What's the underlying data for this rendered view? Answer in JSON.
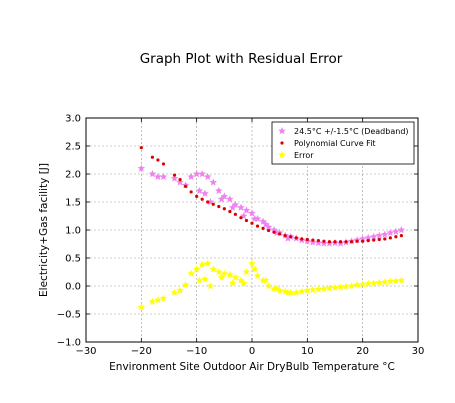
{
  "chart_data": {
    "type": "scatter",
    "title": "Graph Plot with Residual Error",
    "xlabel": "Environment Site Outdoor Air DryBulb Temperature °C",
    "ylabel": "Electricity+Gas facility [J]",
    "xlim": [
      -30,
      30
    ],
    "ylim": [
      -1.0,
      3.0
    ],
    "xticks": [
      -30,
      -20,
      -10,
      0,
      10,
      20,
      30
    ],
    "yticks": [
      -1.0,
      -0.5,
      0.0,
      0.5,
      1.0,
      1.5,
      2.0,
      2.5,
      3.0
    ],
    "grid": true,
    "legend_position": "top-right",
    "series": [
      {
        "name": "24.5°C +/-1.5°C (Deadband)",
        "marker": "star",
        "color": "#ee82ee",
        "x": [
          -20,
          -18,
          -17,
          -16,
          -14,
          -13,
          -12,
          -11,
          -10,
          -9,
          -8,
          -7,
          -6,
          -5,
          -4,
          -3,
          -2,
          -1,
          0,
          1,
          2,
          3,
          4,
          5,
          6,
          7,
          8,
          9,
          10,
          11,
          12,
          13,
          14,
          15,
          16,
          17,
          18,
          19,
          20,
          21,
          22,
          23,
          24,
          25,
          26,
          27,
          -9.5,
          -8.5,
          -7.5,
          -5.5,
          -3.5,
          -1.5,
          0.5,
          2.5,
          4.5,
          6.5
        ],
        "y": [
          2.1,
          2.0,
          1.95,
          1.95,
          1.92,
          1.85,
          1.8,
          1.95,
          2.0,
          2.0,
          1.95,
          1.85,
          1.7,
          1.6,
          1.55,
          1.45,
          1.4,
          1.35,
          1.3,
          1.2,
          1.15,
          1.05,
          1.0,
          0.95,
          0.9,
          0.88,
          0.85,
          0.82,
          0.8,
          0.78,
          0.77,
          0.76,
          0.76,
          0.77,
          0.76,
          0.78,
          0.8,
          0.82,
          0.84,
          0.86,
          0.88,
          0.9,
          0.92,
          0.95,
          0.97,
          1.0,
          1.7,
          1.65,
          1.5,
          1.55,
          1.4,
          1.25,
          1.2,
          1.1,
          0.95,
          0.85
        ]
      },
      {
        "name": "Polynomial Curve Fit",
        "marker": "circle",
        "color": "#dd0000",
        "x": [
          -20,
          -18,
          -17,
          -16,
          -14,
          -13,
          -12,
          -11,
          -10,
          -9,
          -8,
          -7,
          -6,
          -5,
          -4,
          -3,
          -2,
          -1,
          0,
          1,
          2,
          3,
          4,
          5,
          6,
          7,
          8,
          9,
          10,
          11,
          12,
          13,
          14,
          15,
          16,
          17,
          18,
          19,
          20,
          21,
          22,
          23,
          24,
          25,
          26,
          27
        ],
        "y": [
          2.47,
          2.3,
          2.25,
          2.18,
          1.98,
          1.9,
          1.78,
          1.68,
          1.6,
          1.55,
          1.5,
          1.46,
          1.42,
          1.38,
          1.33,
          1.28,
          1.22,
          1.17,
          1.12,
          1.07,
          1.03,
          0.99,
          0.96,
          0.93,
          0.9,
          0.88,
          0.86,
          0.84,
          0.83,
          0.82,
          0.81,
          0.8,
          0.79,
          0.79,
          0.79,
          0.79,
          0.79,
          0.8,
          0.8,
          0.81,
          0.82,
          0.83,
          0.84,
          0.86,
          0.88,
          0.9
        ]
      },
      {
        "name": "Error",
        "marker": "star",
        "color": "#ffff00",
        "x": [
          -20,
          -18,
          -17,
          -16,
          -14,
          -13,
          -12,
          -11,
          -10,
          -9,
          -8,
          -7,
          -6,
          -5,
          -4,
          -3,
          -2,
          -1,
          0,
          1,
          2,
          3,
          4,
          5,
          6,
          7,
          8,
          9,
          10,
          11,
          12,
          13,
          14,
          15,
          16,
          17,
          18,
          19,
          20,
          21,
          22,
          23,
          24,
          25,
          26,
          27,
          -9.5,
          -8.5,
          -7.5,
          -5.5,
          -3.5,
          -1.5,
          0.5,
          2.5,
          4.5,
          6.5
        ],
        "y": [
          -0.38,
          -0.28,
          -0.25,
          -0.22,
          -0.12,
          -0.08,
          0.02,
          0.22,
          0.3,
          0.38,
          0.4,
          0.3,
          0.25,
          0.22,
          0.2,
          0.15,
          0.1,
          0.25,
          0.4,
          0.18,
          0.1,
          0.0,
          -0.05,
          -0.08,
          -0.1,
          -0.12,
          -0.12,
          -0.1,
          -0.08,
          -0.07,
          -0.06,
          -0.05,
          -0.04,
          -0.03,
          -0.02,
          -0.01,
          0.0,
          0.02,
          0.03,
          0.04,
          0.05,
          0.06,
          0.07,
          0.08,
          0.09,
          0.1,
          0.1,
          0.12,
          0.0,
          0.15,
          0.05,
          0.05,
          0.3,
          0.1,
          -0.05,
          -0.12
        ]
      }
    ]
  }
}
